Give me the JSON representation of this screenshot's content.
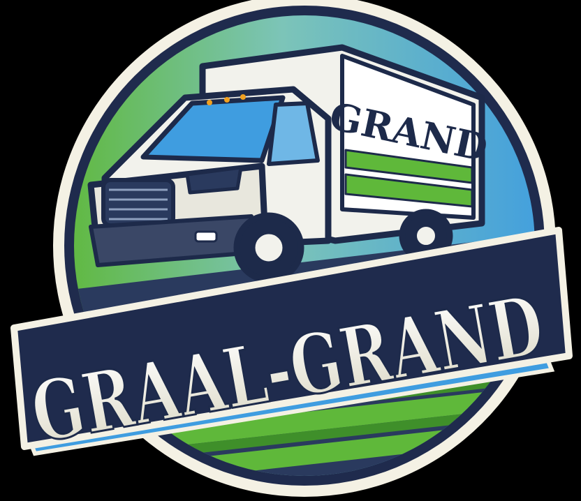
{
  "logo": {
    "truck_box_text": "GRAND",
    "banner_text": "GRAAL-GRAND",
    "palette": {
      "background": "#000000",
      "outline": "#1f2b4d",
      "cream": "#f4f1e4",
      "green": "#5fb83a",
      "green_dark": "#3f8f2a",
      "blue": "#3f9de0",
      "sky": "#6fb7e6",
      "truck_white": "#f2f2ec",
      "navy": "#1d2a4a"
    }
  }
}
